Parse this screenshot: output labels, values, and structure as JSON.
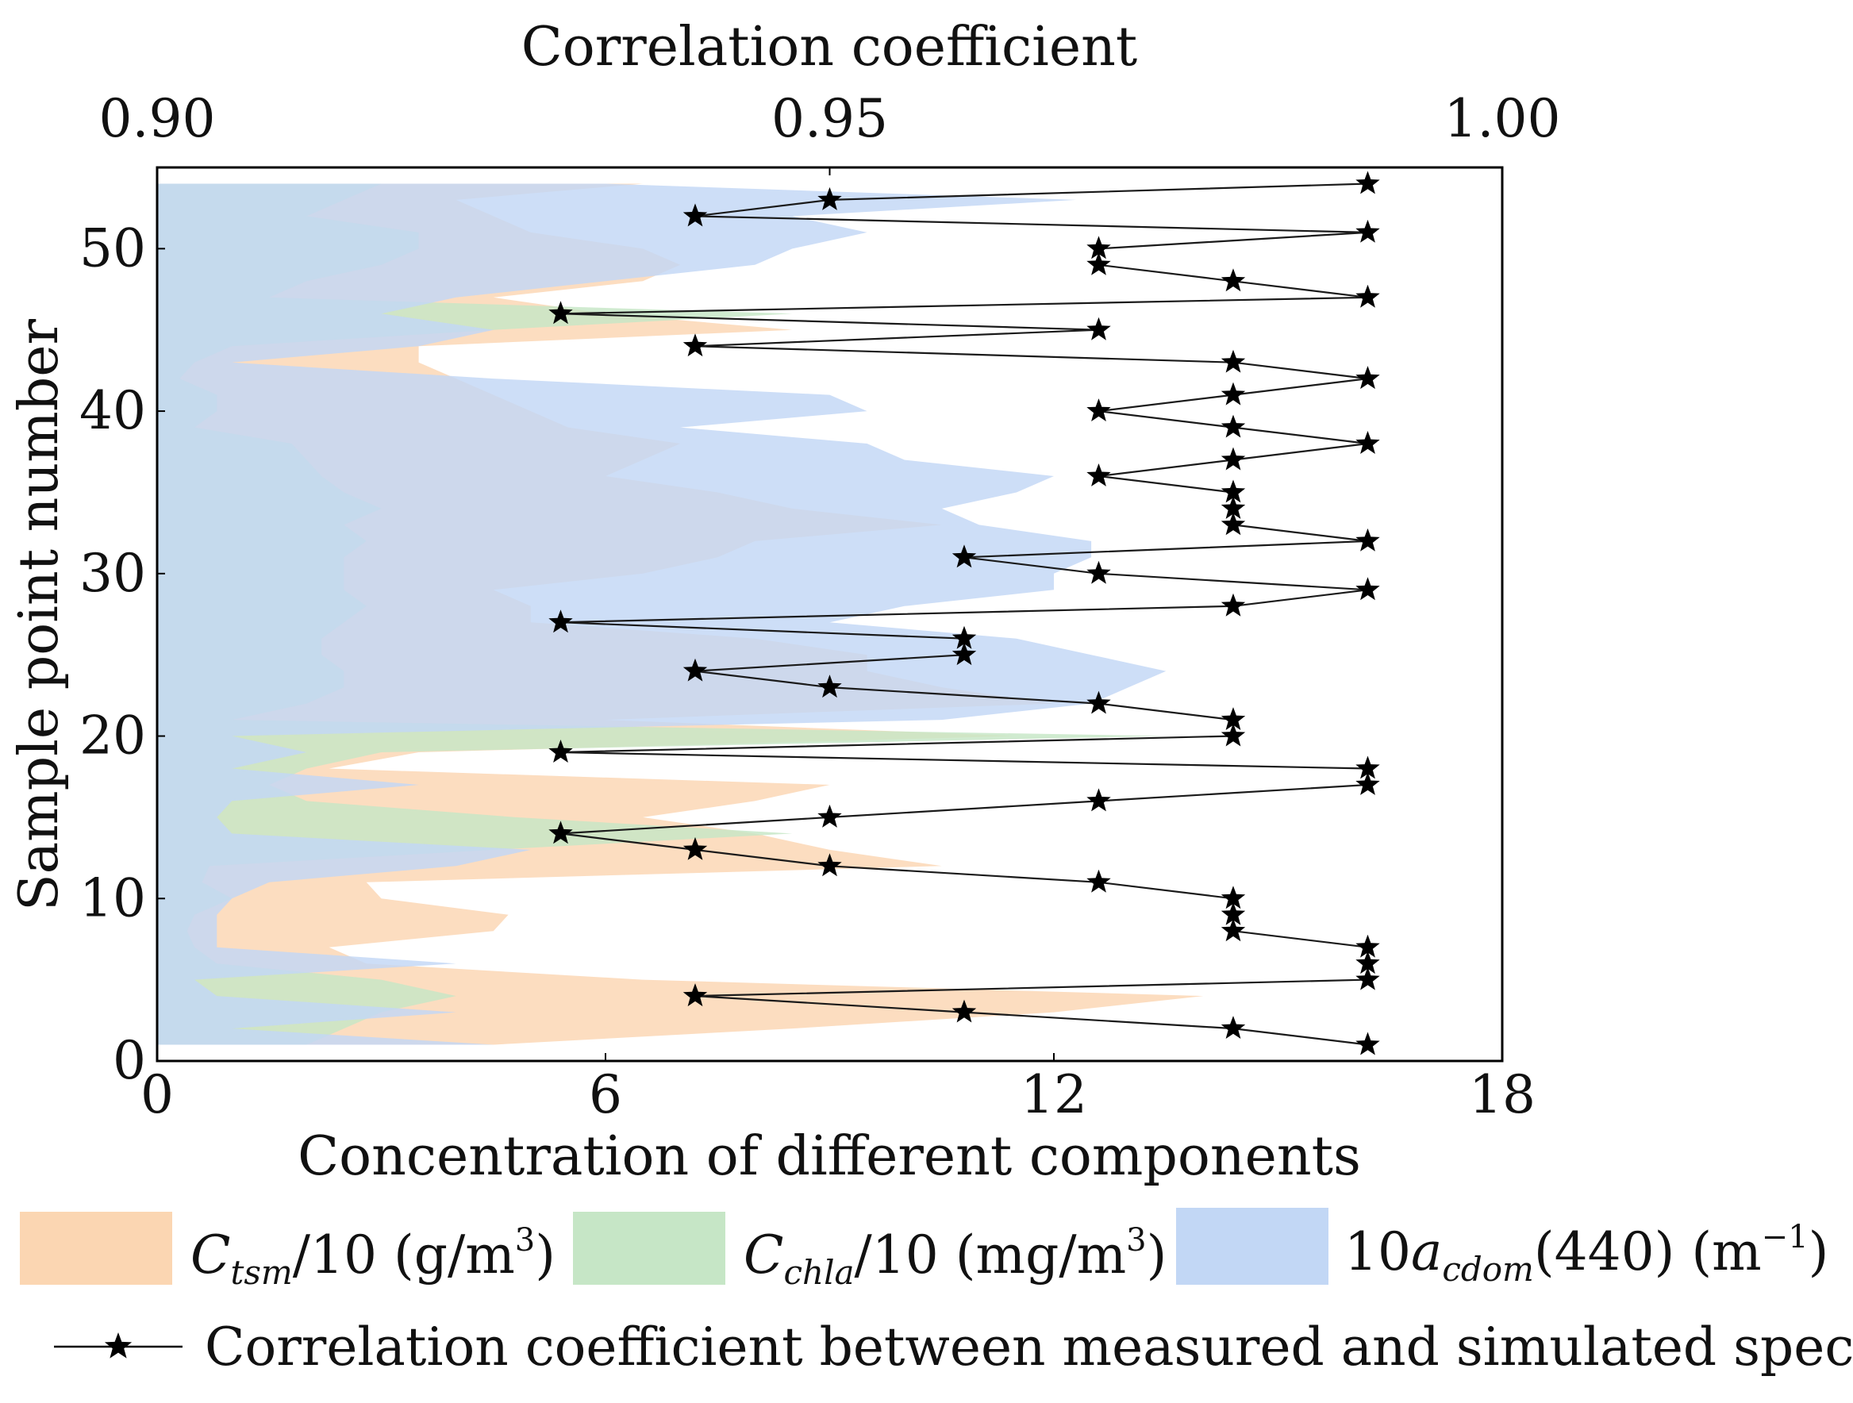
{
  "chart_data": {
    "type": "area+line",
    "bottom_axis": {
      "xlabel": "Concentration of different components",
      "xlim": [
        0,
        18
      ],
      "ticks": [
        "0",
        "6",
        "12",
        "18"
      ]
    },
    "top_axis": {
      "xlabel": "Correlation coefficient",
      "xlim": [
        0.9,
        1.0
      ],
      "ticks": [
        "0.90",
        "0.95",
        "1.00"
      ]
    },
    "y_axis": {
      "ylabel": "Sample point number",
      "ylim": [
        0,
        55
      ],
      "ticks": [
        "0",
        "10",
        "20",
        "30",
        "40",
        "50"
      ]
    },
    "sample_points": [
      1,
      2,
      3,
      4,
      5,
      6,
      7,
      8,
      9,
      10,
      11,
      12,
      13,
      14,
      15,
      16,
      17,
      18,
      19,
      20,
      21,
      22,
      23,
      24,
      25,
      26,
      27,
      28,
      29,
      30,
      31,
      32,
      33,
      34,
      35,
      36,
      37,
      38,
      39,
      40,
      41,
      42,
      43,
      44,
      45,
      46,
      47,
      48,
      49,
      50,
      51,
      52,
      53,
      54
    ],
    "series": [
      {
        "name": "Ctsm/10 (g/m3)",
        "color": "#fbd6b2",
        "values": [
          4.5,
          8.5,
          12.0,
          14.0,
          6.5,
          2.8,
          2.3,
          4.5,
          4.7,
          3.0,
          2.8,
          10.5,
          9.0,
          8.0,
          6.5,
          8.0,
          9.0,
          2.3,
          3.5,
          11.5,
          6.0,
          12.0,
          10.5,
          9.5,
          9.5,
          8.0,
          5.0,
          5.0,
          4.5,
          6.5,
          7.5,
          8.0,
          10.5,
          8.5,
          7.5,
          6.0,
          6.5,
          7.0,
          5.5,
          5.0,
          4.5,
          4.0,
          3.5,
          3.5,
          8.5,
          6.0,
          4.5,
          6.5,
          7.0,
          6.5,
          5.0,
          4.5,
          4.0,
          6.5
        ]
      },
      {
        "name": "Cchla/10 (mg/m3)",
        "color": "#c6e6c6",
        "values": [
          2.0,
          2.5,
          3.0,
          4.0,
          3.0,
          0.8,
          0.5,
          0.4,
          0.5,
          1.0,
          0.6,
          0.7,
          4.5,
          8.5,
          4.8,
          2.0,
          1.5,
          2.0,
          3.0,
          13.5,
          1.0,
          2.0,
          2.5,
          2.5,
          2.2,
          2.2,
          2.5,
          2.8,
          2.5,
          2.5,
          2.5,
          2.8,
          2.5,
          3.0,
          2.5,
          2.2,
          2.0,
          1.8,
          0.5,
          0.8,
          0.8,
          0.3,
          0.5,
          1.0,
          4.5,
          8.5,
          1.5,
          2.0,
          3.0,
          3.5,
          3.5,
          2.0,
          2.5,
          3.0
        ]
      },
      {
        "name": "10acdom(440) (m⁻¹)",
        "color": "#c2d7f5",
        "values": [
          4.5,
          1.0,
          4.0,
          0.8,
          0.5,
          4.0,
          0.8,
          0.8,
          0.8,
          1.0,
          1.5,
          4.0,
          5.0,
          1.0,
          0.8,
          1.0,
          3.5,
          1.0,
          2.0,
          1.0,
          10.5,
          12.5,
          13.0,
          13.5,
          12.5,
          11.5,
          9.0,
          10.0,
          12.0,
          12.0,
          12.5,
          12.5,
          11.0,
          10.5,
          11.5,
          12.0,
          10.0,
          9.5,
          7.0,
          9.5,
          9.0,
          4.5,
          1.0,
          3.5,
          4.5,
          3.0,
          4.0,
          6.0,
          8.0,
          8.5,
          9.5,
          8.5,
          12.3,
          6.0
        ]
      }
    ],
    "correlation_series": {
      "name": "Correlation coefficient between measured and simulated spectra",
      "values": [
        0.99,
        0.98,
        0.96,
        0.94,
        0.99,
        0.99,
        0.99,
        0.98,
        0.98,
        0.98,
        0.97,
        0.95,
        0.94,
        0.93,
        0.95,
        0.97,
        0.99,
        0.99,
        0.93,
        0.98,
        0.98,
        0.97,
        0.95,
        0.94,
        0.96,
        0.96,
        0.93,
        0.98,
        0.99,
        0.97,
        0.96,
        0.99,
        0.98,
        0.98,
        0.98,
        0.97,
        0.98,
        0.99,
        0.98,
        0.97,
        0.98,
        0.99,
        0.98,
        0.94,
        0.97,
        0.93,
        0.99,
        0.98,
        0.97,
        0.97,
        0.99,
        0.94,
        0.95,
        0.99
      ]
    },
    "legend": {
      "tsm": {
        "sym": "C",
        "sub": "tsm",
        "rest": "/10 (g/m",
        "sup": "3",
        "end": ")"
      },
      "chla": {
        "sym": "C",
        "sub": "chla",
        "rest": "/10 (mg/m",
        "sup": "3",
        "end": ")"
      },
      "cdom": {
        "pre": "10",
        "sym": "a",
        "sub": "cdom",
        "rest": "(440) (m",
        "sup": "−1",
        "end": ")"
      },
      "line_label": "Correlation coefficient between measured and simulated spectra"
    }
  }
}
